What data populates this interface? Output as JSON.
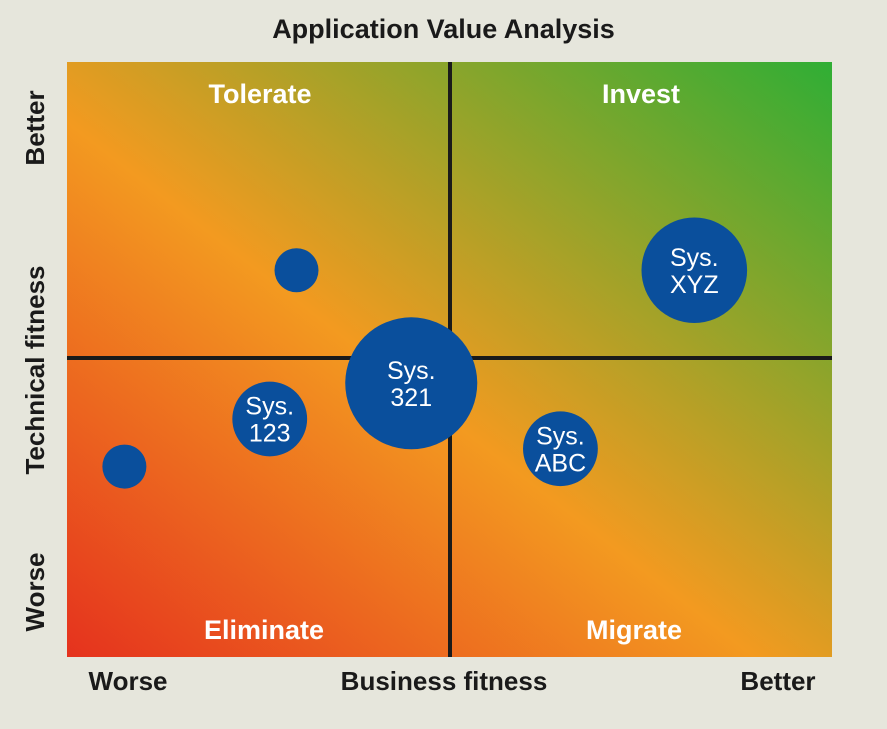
{
  "chart_data": {
    "type": "scatter",
    "title": "Application Value Analysis",
    "xlabel": "Business fitness",
    "ylabel": "Technical fitness",
    "x_low_label": "Worse",
    "x_high_label": "Better",
    "y_low_label": "Worse",
    "y_high_label": "Better",
    "xlim": [
      0,
      10
    ],
    "ylim": [
      0,
      10
    ],
    "quadrants": {
      "top_left": "Tolerate",
      "top_right": "Invest",
      "bottom_left": "Eliminate",
      "bottom_right": "Migrate"
    },
    "points": [
      {
        "label": "",
        "x": 0.75,
        "y": 3.2,
        "size": 1.0
      },
      {
        "label": "",
        "x": 3.0,
        "y": 6.5,
        "size": 1.0
      },
      {
        "label": "Sys.\n123",
        "x": 2.65,
        "y": 4.0,
        "size": 1.7
      },
      {
        "label": "Sys.\n321",
        "x": 4.5,
        "y": 4.6,
        "size": 3.0
      },
      {
        "label": "Sys.\nABC",
        "x": 6.45,
        "y": 3.5,
        "size": 1.7
      },
      {
        "label": "Sys.\nXYZ",
        "x": 8.2,
        "y": 6.5,
        "size": 2.4
      }
    ],
    "colors": {
      "bubble": "#0a4f9c",
      "gradient_bottom_left": "#e5321e",
      "gradient_mid": "#f39a20",
      "gradient_top_right": "#2fae35"
    }
  }
}
